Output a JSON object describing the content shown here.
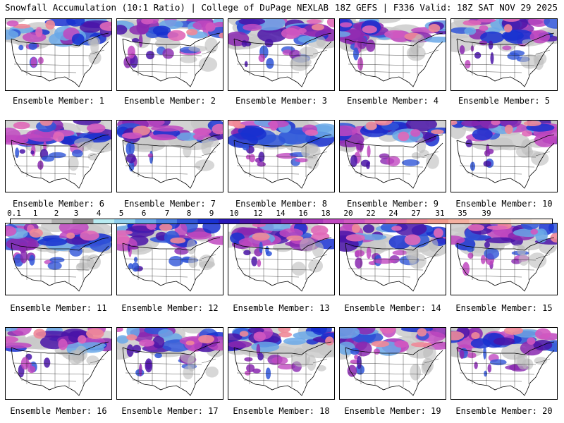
{
  "header": {
    "title_left": "Snowfall Accumulation (10:1 Ratio) | College of DuPage NEXLAB",
    "title_right": "18Z GEFS | F336 Valid: 18Z SAT NOV 29 2025"
  },
  "panels": [
    {
      "label": "Ensemble Member: 1"
    },
    {
      "label": "Ensemble Member: 2"
    },
    {
      "label": "Ensemble Member: 3"
    },
    {
      "label": "Ensemble Member: 4"
    },
    {
      "label": "Ensemble Member: 5"
    },
    {
      "label": "Ensemble Member: 6"
    },
    {
      "label": "Ensemble Member: 7"
    },
    {
      "label": "Ensemble Member: 8"
    },
    {
      "label": "Ensemble Member: 9"
    },
    {
      "label": "Ensemble Member: 10"
    },
    {
      "label": "Ensemble Member: 11"
    },
    {
      "label": "Ensemble Member: 12"
    },
    {
      "label": "Ensemble Member: 13"
    },
    {
      "label": "Ensemble Member: 14"
    },
    {
      "label": "Ensemble Member: 15"
    },
    {
      "label": "Ensemble Member: 16"
    },
    {
      "label": "Ensemble Member: 17"
    },
    {
      "label": "Ensemble Member: 18"
    },
    {
      "label": "Ensemble Member: 19"
    },
    {
      "label": "Ensemble Member: 20"
    }
  ],
  "colorbar": {
    "ticks": [
      "0.1",
      "1",
      "2",
      "3",
      "4",
      "5",
      "6",
      "7",
      "8",
      "9",
      "10",
      "12",
      "14",
      "16",
      "18",
      "20",
      "22",
      "24",
      "27",
      "31",
      "35",
      "39"
    ],
    "colors": [
      "#f2f2f2",
      "#d4d4d4",
      "#b0b0b0",
      "#8c8c8c",
      "#b8ecf2",
      "#8fd0ee",
      "#6aa8e8",
      "#4a80e0",
      "#2f55d8",
      "#1830d0",
      "#2a18b8",
      "#4a14a8",
      "#6a18a8",
      "#8a28b0",
      "#a838b8",
      "#c048c0",
      "#d058c0",
      "#e068b8",
      "#e878a8",
      "#f08898",
      "#f09a8c",
      "#f4b0a0",
      "#f6c6b4",
      "#f9dcca",
      "#fcecde",
      "#fff6ee"
    ]
  }
}
